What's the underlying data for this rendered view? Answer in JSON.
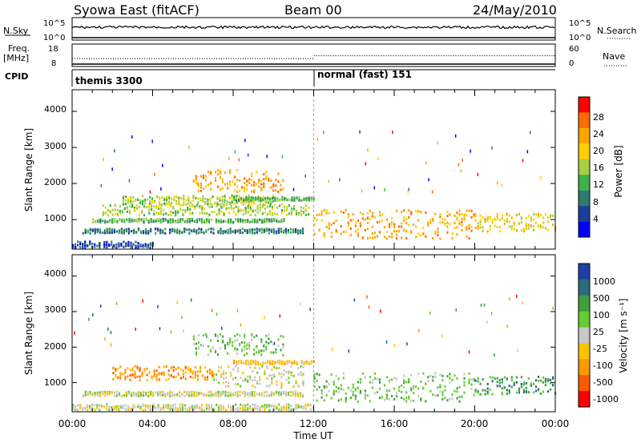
{
  "header": {
    "title": "Syowa East (fitACF)",
    "beam": "Beam 00",
    "date": "24/May/2010"
  },
  "panels": {
    "nsky_label": "N.Sky",
    "nsky_ticks": [
      "10^5",
      "10^0"
    ],
    "nsearch_label": "N.Search",
    "nsearch_ticks": [
      "10^5",
      "10^0"
    ],
    "freq_label_1": "Freq.",
    "freq_label_2": "[MHz]",
    "freq_ticks": [
      "18",
      "8"
    ],
    "nave_label": "Nave",
    "nave_ticks": [
      "60",
      "0"
    ],
    "cpid_label": "CPID",
    "cpid_segments": [
      {
        "label": "themis 3300",
        "start_hour": 0
      },
      {
        "label": "normal (fast) 151",
        "start_hour": 12
      }
    ]
  },
  "axes": {
    "ylabel": "Slant Range [km]",
    "xlabel": "Time UT",
    "yticks": [
      "4000",
      "3000",
      "2000",
      "1000"
    ],
    "xticks": [
      "00:00",
      "04:00",
      "08:00",
      "12:00",
      "16:00",
      "20:00",
      "00:00"
    ]
  },
  "colorbars": {
    "power": {
      "label": "Power [dB]",
      "ticks": [
        "28",
        "24",
        "20",
        "16",
        "12",
        "8",
        "4"
      ],
      "colors": [
        "#ff0000",
        "#ff6a00",
        "#ffa500",
        "#ffd000",
        "#a8d040",
        "#3fb04a",
        "#2e7a6e",
        "#1c3f9c",
        "#0000ff"
      ]
    },
    "velocity": {
      "label": "Velocity [m s⁻¹]",
      "ticks": [
        "1000",
        "500",
        "100",
        "25",
        "-25",
        "-100",
        "-500",
        "-1000"
      ],
      "colors": [
        "#1f3fa8",
        "#2b6b7a",
        "#3f9f3f",
        "#66cc33",
        "#c8c8c8",
        "#ffc400",
        "#ff9900",
        "#ff5a00",
        "#ff0000"
      ]
    }
  },
  "chart_data": {
    "type": "heatmap",
    "x_unit": "hour UT",
    "y_unit": "km",
    "xlim": [
      0,
      24
    ],
    "ylim": [
      180,
      4600
    ],
    "power_bands": [
      {
        "start": 0.0,
        "end": 4.0,
        "range_low": 250,
        "range_high": 420,
        "level": 7
      },
      {
        "start": 0.5,
        "end": 11.5,
        "range_low": 650,
        "range_high": 780,
        "level": 6
      },
      {
        "start": 1.0,
        "end": 10.5,
        "range_low": 950,
        "range_high": 1050,
        "level": 5
      },
      {
        "start": 1.5,
        "end": 11.8,
        "range_low": 1150,
        "range_high": 1450,
        "level": 4
      },
      {
        "start": 2.5,
        "end": 10.0,
        "range_low": 1450,
        "range_high": 1700,
        "level": 4
      },
      {
        "start": 8.0,
        "end": 12.0,
        "range_low": 1550,
        "range_high": 1650,
        "level": 5
      },
      {
        "start": 6.0,
        "end": 10.5,
        "range_low": 1800,
        "range_high": 2400,
        "level": 2
      },
      {
        "start": 12.0,
        "end": 20.0,
        "range_low": 500,
        "range_high": 1300,
        "level": 2
      },
      {
        "start": 20.0,
        "end": 24.0,
        "range_low": 700,
        "range_high": 1200,
        "level": 3
      }
    ],
    "velocity_bands": [
      {
        "start": 0.0,
        "end": 4.0,
        "range_low": 250,
        "range_high": 420,
        "level": 4
      },
      {
        "start": 4.0,
        "end": 12.0,
        "range_low": 250,
        "range_high": 420,
        "level": 4
      },
      {
        "start": 0.5,
        "end": 11.5,
        "range_low": 650,
        "range_high": 780,
        "level": 4
      },
      {
        "start": 2.0,
        "end": 7.0,
        "range_low": 1100,
        "range_high": 1500,
        "level": 6
      },
      {
        "start": 7.0,
        "end": 11.5,
        "range_low": 900,
        "range_high": 1500,
        "level": 4
      },
      {
        "start": 8.0,
        "end": 12.0,
        "range_low": 1550,
        "range_high": 1650,
        "level": 5
      },
      {
        "start": 6.0,
        "end": 10.5,
        "range_low": 1800,
        "range_high": 2400,
        "level": 3
      },
      {
        "start": 12.0,
        "end": 20.0,
        "range_low": 500,
        "range_high": 1300,
        "level": 3
      },
      {
        "start": 20.0,
        "end": 24.0,
        "range_low": 700,
        "range_high": 1200,
        "level": 2
      }
    ],
    "freq_mhz": [
      {
        "start": 0,
        "end": 12,
        "value": 11.5
      },
      {
        "start": 12,
        "end": 24,
        "value": 12.8
      }
    ]
  }
}
